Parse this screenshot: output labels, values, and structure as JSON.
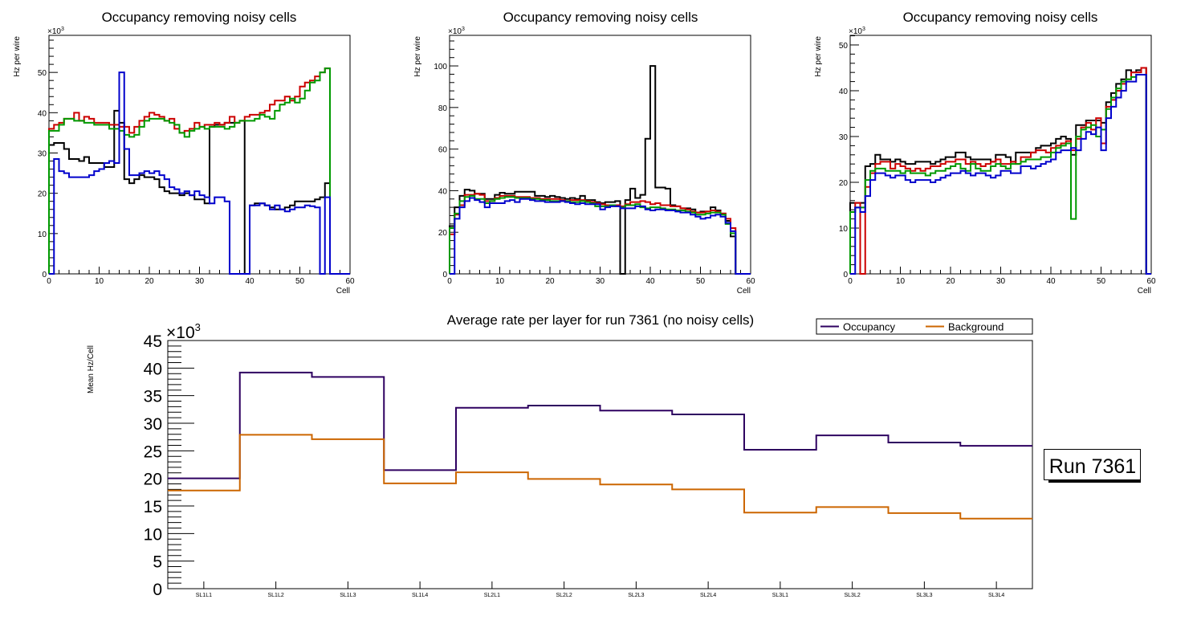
{
  "colors": {
    "black": "#000000",
    "red": "#cc0000",
    "green": "#009900",
    "blue": "#0000cc",
    "occupancy": "#2e0060",
    "background": "#cc6600"
  },
  "run_label": "Run 7361",
  "chart_data": [
    {
      "type": "line",
      "style": "histogram-step",
      "title": "Occupancy removing noisy cells",
      "xlabel": "Cell",
      "ylabel": "Hz per wire",
      "y_multiplier": "×10",
      "y_multiplier_exp": "3",
      "xlim": [
        0,
        60
      ],
      "ylim": [
        0,
        59.2
      ],
      "xticks": [
        0,
        10,
        20,
        30,
        40,
        50,
        60
      ],
      "yticks": [
        0,
        10,
        20,
        30,
        40,
        50
      ],
      "unit_scale": 1000,
      "series": [
        {
          "name": "black",
          "color_key": "black",
          "values": [
            32,
            32.5,
            32.5,
            31,
            28.5,
            28.5,
            28,
            29,
            27.5,
            27.5,
            27.5,
            26.5,
            26.5,
            40.5,
            37.5,
            23.5,
            22.5,
            23.5,
            24.5,
            24,
            24,
            23.5,
            21.5,
            20.5,
            20,
            20,
            19.5,
            20,
            19.5,
            18.5,
            18.5,
            17.5,
            36.5,
            37,
            37,
            37.5,
            37.5,
            37.5,
            38,
            0,
            17,
            17.5,
            17.5,
            17,
            16.5,
            16,
            16,
            16.5,
            17,
            18,
            18,
            18,
            18,
            18.5,
            19,
            22.5,
            0,
            0,
            0,
            0
          ]
        },
        {
          "name": "red",
          "color_key": "red",
          "values": [
            36,
            37,
            37.5,
            38.5,
            38.5,
            40,
            38,
            39,
            38.5,
            37.5,
            37.5,
            37.5,
            37,
            37,
            36.5,
            36.5,
            35,
            36.5,
            38,
            39,
            40,
            39.5,
            39,
            38,
            38.5,
            36,
            35,
            35.5,
            36,
            37.5,
            36.5,
            37,
            37,
            37.5,
            37,
            37.5,
            39,
            37.5,
            38,
            39,
            39.5,
            39.5,
            40,
            40.5,
            42,
            43,
            43,
            44,
            43,
            44,
            46.5,
            47.5,
            48,
            49,
            50,
            51,
            0,
            0,
            0,
            0
          ]
        },
        {
          "name": "green",
          "color_key": "green",
          "values": [
            35.5,
            35.5,
            37,
            38.5,
            38.5,
            38,
            38,
            37.5,
            37.5,
            37,
            37,
            37,
            36,
            36,
            35.5,
            34.5,
            34,
            34.5,
            36.5,
            38,
            38.5,
            38.5,
            38.5,
            38,
            37.5,
            37,
            35,
            34,
            35.5,
            36,
            36.5,
            36,
            36.5,
            36.5,
            36.5,
            36,
            36.5,
            37.5,
            38,
            38,
            38,
            38.5,
            39.5,
            39,
            38.5,
            40.5,
            42,
            42.5,
            43.5,
            42.5,
            43.5,
            45.5,
            47.5,
            48,
            50,
            51,
            0,
            0,
            0,
            0
          ]
        },
        {
          "name": "blue",
          "color_key": "blue",
          "values": [
            0,
            28.5,
            25.5,
            25,
            24,
            24,
            24,
            24,
            24.5,
            25.5,
            26,
            27.5,
            28,
            27.5,
            50,
            31,
            24.5,
            24.5,
            25,
            25.5,
            25,
            25.5,
            24.5,
            23.5,
            21.5,
            21,
            20,
            20.5,
            19.5,
            20.5,
            19.5,
            19,
            17.5,
            19,
            19,
            18,
            0,
            0,
            0,
            0,
            17,
            17,
            17.5,
            17,
            16,
            17,
            16,
            15.5,
            16,
            16.5,
            16.5,
            17,
            16.8,
            16.5,
            0,
            19,
            0,
            0,
            0,
            0
          ]
        }
      ]
    },
    {
      "type": "line",
      "style": "histogram-step",
      "title": "Occupancy removing noisy cells",
      "xlabel": "Cell",
      "ylabel": "Hz per wire",
      "y_multiplier": "×10",
      "y_multiplier_exp": "3",
      "xlim": [
        0,
        60
      ],
      "ylim": [
        0,
        114.7
      ],
      "xticks": [
        0,
        10,
        20,
        30,
        40,
        50,
        60
      ],
      "yticks": [
        0,
        20,
        40,
        60,
        80,
        100
      ],
      "unit_scale": 1000,
      "series": [
        {
          "name": "black",
          "color_key": "black",
          "values": [
            23,
            32,
            37.5,
            40.5,
            40,
            38.5,
            38.5,
            36,
            36,
            38,
            39,
            38.5,
            38.5,
            39.5,
            39.5,
            39.5,
            39.5,
            37.5,
            37.5,
            37,
            37.5,
            37,
            36.5,
            36,
            36.5,
            36,
            37.5,
            35.5,
            35.5,
            34.5,
            34,
            34.5,
            34.5,
            35,
            0,
            35.5,
            41,
            36.5,
            38,
            65,
            100,
            41.5,
            41.5,
            41,
            33,
            32.5,
            31.5,
            31.5,
            31,
            29.5,
            30,
            30,
            32,
            30.5,
            29,
            25.5,
            18,
            0,
            0,
            0
          ]
        },
        {
          "name": "red",
          "color_key": "red",
          "values": [
            19,
            28.5,
            33,
            38,
            38,
            38.5,
            38,
            35,
            35,
            36.5,
            37.5,
            37.5,
            37.5,
            37,
            37,
            37,
            36.5,
            36.5,
            36,
            36,
            36,
            36,
            35.5,
            35,
            35.5,
            35.5,
            35.5,
            35,
            34.5,
            34,
            33.5,
            33,
            33,
            33,
            32.5,
            33.5,
            34.5,
            34.5,
            35,
            34.5,
            33.5,
            34,
            33,
            33,
            32.5,
            32.5,
            31.5,
            31,
            30,
            29.5,
            29.5,
            30,
            30.5,
            30,
            29,
            26.5,
            22,
            0,
            0,
            0
          ]
        },
        {
          "name": "green",
          "color_key": "green",
          "values": [
            22,
            29,
            35,
            37,
            37.5,
            36,
            36,
            34,
            35,
            36,
            36.5,
            37,
            37,
            36.5,
            36.5,
            36.5,
            36,
            36,
            35.5,
            35.5,
            35,
            35,
            35,
            35,
            34.5,
            34.5,
            35,
            34.5,
            34,
            32.5,
            32.5,
            32.5,
            33,
            32.5,
            32,
            33,
            33,
            33.5,
            32,
            31.5,
            32,
            32,
            31.5,
            31,
            31,
            30.5,
            30.5,
            30,
            29.5,
            28.5,
            28.5,
            29,
            29.5,
            29.5,
            28.5,
            24,
            19.5,
            0,
            0,
            0
          ]
        },
        {
          "name": "blue",
          "color_key": "blue",
          "values": [
            0,
            26.5,
            32,
            35,
            36.5,
            35.5,
            34.5,
            32,
            34,
            34,
            34,
            35,
            35.5,
            34.5,
            36,
            36,
            35.5,
            35,
            35,
            34.5,
            34.5,
            34.5,
            35,
            34.5,
            34,
            33.5,
            34,
            33.5,
            33.5,
            33.5,
            31,
            32,
            32.5,
            32.5,
            31.5,
            31.5,
            31.5,
            32.5,
            32.5,
            31,
            30.5,
            31,
            31,
            30.5,
            30.5,
            30,
            29.5,
            29.5,
            28.5,
            27.5,
            26.5,
            27,
            28,
            28.5,
            27.5,
            24.5,
            20.5,
            0,
            0,
            0
          ]
        }
      ]
    },
    {
      "type": "line",
      "style": "histogram-step",
      "title": "Occupancy removing noisy cells",
      "xlabel": "Cell",
      "ylabel": "Hz per wire",
      "y_multiplier": "×10",
      "y_multiplier_exp": "3",
      "xlim": [
        0,
        60
      ],
      "ylim": [
        0,
        52.1
      ],
      "xticks": [
        0,
        10,
        20,
        30,
        40,
        50,
        60
      ],
      "yticks": [
        0,
        10,
        20,
        30,
        40,
        50
      ],
      "unit_scale": 1000,
      "series": [
        {
          "name": "black",
          "color_key": "black",
          "values": [
            15.5,
            15.5,
            15.5,
            23.5,
            24,
            26,
            25,
            25,
            24.5,
            25,
            24.5,
            24,
            24,
            24.5,
            24.5,
            24.5,
            24,
            24.5,
            25,
            25.5,
            25.5,
            26.5,
            26.5,
            25.5,
            25,
            25,
            25,
            25,
            24.5,
            26,
            26,
            25.5,
            24.5,
            26.5,
            26.5,
            26.5,
            26.5,
            27.5,
            28,
            28,
            28.5,
            29.5,
            30,
            29.5,
            26,
            32.5,
            32.5,
            33.5,
            33.5,
            33.5,
            33,
            37.5,
            39.5,
            41.5,
            42.5,
            44.5,
            44,
            44.5,
            45,
            0
          ]
        },
        {
          "name": "red",
          "color_key": "red",
          "values": [
            13.5,
            15.5,
            0,
            19,
            22,
            24,
            24.5,
            24.5,
            23,
            24,
            23.5,
            23,
            22.5,
            23,
            22.5,
            23,
            23.5,
            23.5,
            24,
            24.5,
            24.5,
            25,
            25,
            24,
            24.5,
            24,
            23.5,
            24,
            24.5,
            25,
            24,
            24,
            24.5,
            24,
            25.5,
            25.5,
            26.5,
            27,
            27,
            26.5,
            27.5,
            28,
            28.5,
            29,
            27,
            29.5,
            32,
            33,
            31.5,
            34,
            28.5,
            36.5,
            38,
            40,
            41.5,
            42.5,
            44,
            44,
            45,
            0
          ]
        },
        {
          "name": "green",
          "color_key": "green",
          "values": [
            13.5,
            14.5,
            14.5,
            20.5,
            22.5,
            23,
            23,
            22.5,
            22.5,
            22.5,
            22,
            22.5,
            22,
            22,
            22,
            21.5,
            22,
            22.5,
            22.5,
            23,
            23.5,
            24,
            23,
            22.5,
            24,
            23,
            22.5,
            22.5,
            23.5,
            24,
            23.5,
            23,
            24,
            24,
            24.5,
            25,
            25,
            25,
            25.5,
            25.5,
            26.5,
            27.5,
            28,
            28.5,
            12,
            30,
            31.5,
            32,
            32.5,
            30,
            31.5,
            36,
            38.5,
            40.5,
            42,
            42.5,
            43,
            43.5,
            43.5,
            0
          ]
        },
        {
          "name": "blue",
          "color_key": "blue",
          "values": [
            0,
            14.5,
            13.5,
            17,
            20.5,
            22,
            22,
            21.5,
            21,
            21.5,
            21.5,
            20.5,
            20,
            20.5,
            20.5,
            20.5,
            20,
            20.5,
            21,
            21.5,
            22,
            22,
            22.5,
            22,
            21.5,
            22,
            22,
            21.5,
            21,
            21.5,
            22.5,
            22.5,
            22,
            22,
            23.5,
            23.5,
            23,
            23.5,
            24,
            24.5,
            25,
            26.5,
            27,
            27,
            27.5,
            27,
            29.5,
            31,
            30.5,
            32,
            27,
            34,
            36.5,
            38.5,
            40,
            42,
            42,
            43.5,
            43.5,
            0
          ]
        }
      ]
    },
    {
      "type": "line",
      "style": "histogram-step",
      "title": "Average rate per layer for run 7361 (no noisy cells)",
      "xlabel": "",
      "ylabel": "Mean Hz/Cell",
      "y_multiplier": "×10",
      "y_multiplier_exp": "3",
      "ylim": [
        0,
        45
      ],
      "yticks": [
        0,
        5,
        10,
        15,
        20,
        25,
        30,
        35,
        40,
        45
      ],
      "unit_scale": 1000,
      "categories": [
        "SL1L1",
        "SL1L2",
        "SL1L3",
        "SL1L4",
        "SL2L1",
        "SL2L2",
        "SL2L3",
        "SL2L4",
        "SL3L1",
        "SL3L2",
        "SL3L3",
        "SL3L4"
      ],
      "legend": {
        "position": "top-right",
        "entries": [
          "Occupancy",
          "Background"
        ]
      },
      "series": [
        {
          "name": "Occupancy",
          "color_key": "occupancy",
          "values": [
            20.0,
            39.2,
            38.4,
            21.5,
            32.8,
            33.2,
            32.3,
            31.6,
            25.2,
            27.8,
            26.5,
            25.9
          ]
        },
        {
          "name": "Background",
          "color_key": "background",
          "values": [
            17.8,
            27.9,
            27.1,
            19.1,
            21.1,
            19.9,
            18.9,
            18.0,
            13.8,
            14.8,
            13.7,
            12.7
          ]
        }
      ]
    }
  ]
}
